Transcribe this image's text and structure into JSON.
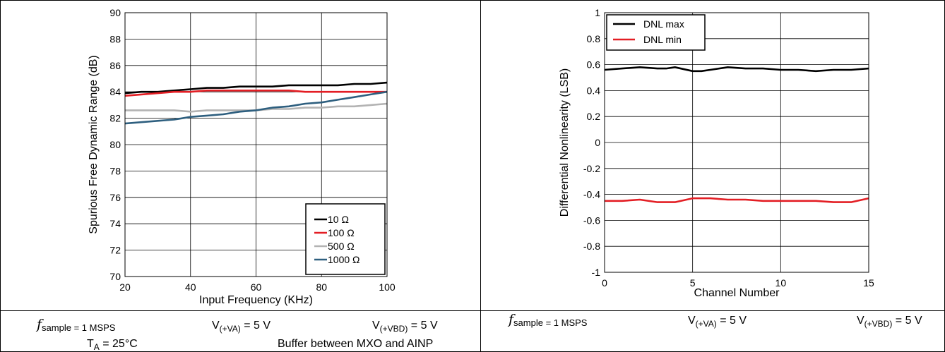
{
  "colors": {
    "black": "#000000",
    "red": "#e31e24",
    "gray": "#b3b3b3",
    "blue": "#2e5f7f"
  },
  "left_conditions": {
    "fsample": "sample = 1 MSPS",
    "fsample_prefix": "f",
    "vva": "V",
    "vva_sub": "(+VA)",
    "vva_value": " = 5 V",
    "vvbd": "V",
    "vvbd_sub": "(+VBD)",
    "vvbd_value": " = 5 V",
    "ta": "T",
    "ta_sub": "A",
    "ta_value": " = 25°C",
    "buffer": "Buffer between MXO and AINP"
  },
  "right_conditions": {
    "fsample": "sample = 1 MSPS",
    "fsample_prefix": "f",
    "vva": "V",
    "vva_sub": "(+VA)",
    "vva_value": " = 5 V",
    "vvbd": "V",
    "vvbd_sub": "(+VBD)",
    "vvbd_value": " = 5 V"
  },
  "chart_data": [
    {
      "type": "line",
      "xlabel": "Input Frequency (KHz)",
      "ylabel": "Spurious Free Dynamic Range (dB)",
      "xlim": [
        20,
        100
      ],
      "ylim": [
        70,
        90
      ],
      "xticks": [
        20,
        40,
        60,
        80,
        100
      ],
      "yticks": [
        70,
        72,
        74,
        76,
        78,
        80,
        82,
        84,
        86,
        88,
        90
      ],
      "grid": true,
      "legend_position": "bottom-right",
      "x": [
        20,
        25,
        30,
        35,
        40,
        45,
        50,
        55,
        60,
        65,
        70,
        75,
        80,
        85,
        90,
        95,
        100
      ],
      "series": [
        {
          "name": "10 Ω",
          "color": "#000000",
          "values": [
            83.9,
            84.0,
            84.0,
            84.1,
            84.2,
            84.3,
            84.3,
            84.4,
            84.4,
            84.4,
            84.5,
            84.5,
            84.5,
            84.5,
            84.6,
            84.6,
            84.7
          ]
        },
        {
          "name": "100 Ω",
          "color": "#e31e24",
          "values": [
            83.7,
            83.8,
            83.9,
            84.0,
            84.0,
            84.1,
            84.1,
            84.1,
            84.1,
            84.1,
            84.1,
            84.0,
            84.0,
            84.0,
            84.0,
            84.0,
            84.0
          ]
        },
        {
          "name": "500 Ω",
          "color": "#b3b3b3",
          "values": [
            82.6,
            82.6,
            82.6,
            82.6,
            82.5,
            82.6,
            82.6,
            82.6,
            82.6,
            82.7,
            82.7,
            82.8,
            82.8,
            82.9,
            82.9,
            83.0,
            83.1
          ]
        },
        {
          "name": "1000 Ω",
          "color": "#2e5f7f",
          "values": [
            81.6,
            81.7,
            81.8,
            81.9,
            82.1,
            82.2,
            82.3,
            82.5,
            82.6,
            82.8,
            82.9,
            83.1,
            83.2,
            83.4,
            83.6,
            83.8,
            84.0
          ]
        }
      ]
    },
    {
      "type": "line",
      "xlabel": "Channel Number",
      "ylabel": "Differential Nonlinearity (LSB)",
      "xlim": [
        0,
        15
      ],
      "ylim": [
        -1,
        1
      ],
      "xticks": [
        0,
        5,
        10,
        15
      ],
      "yticks": [
        -1,
        -0.8,
        -0.6,
        -0.4,
        -0.2,
        0,
        0.2,
        0.4,
        0.6,
        0.8,
        1
      ],
      "ytick_labels": [
        "-1",
        "-0.8",
        "-0.6",
        "-0.4",
        "-0.2",
        "0",
        "0.2",
        "0.4",
        "0.6",
        "0.8",
        "1"
      ],
      "grid": true,
      "legend_position": "top-left",
      "x": [
        0,
        1,
        2,
        3,
        3.5,
        4,
        5,
        5.5,
        6,
        7,
        8,
        9,
        10,
        11,
        12,
        13,
        14,
        15
      ],
      "series": [
        {
          "name": "DNL max",
          "color": "#000000",
          "values": [
            0.56,
            0.57,
            0.58,
            0.57,
            0.57,
            0.58,
            0.55,
            0.55,
            0.56,
            0.58,
            0.57,
            0.57,
            0.56,
            0.56,
            0.55,
            0.56,
            0.56,
            0.57
          ]
        },
        {
          "name": "DNL min",
          "color": "#e31e24",
          "values": [
            -0.45,
            -0.45,
            -0.44,
            -0.46,
            -0.46,
            -0.46,
            -0.43,
            -0.43,
            -0.43,
            -0.44,
            -0.44,
            -0.45,
            -0.45,
            -0.45,
            -0.45,
            -0.46,
            -0.46,
            -0.43
          ]
        }
      ]
    }
  ]
}
